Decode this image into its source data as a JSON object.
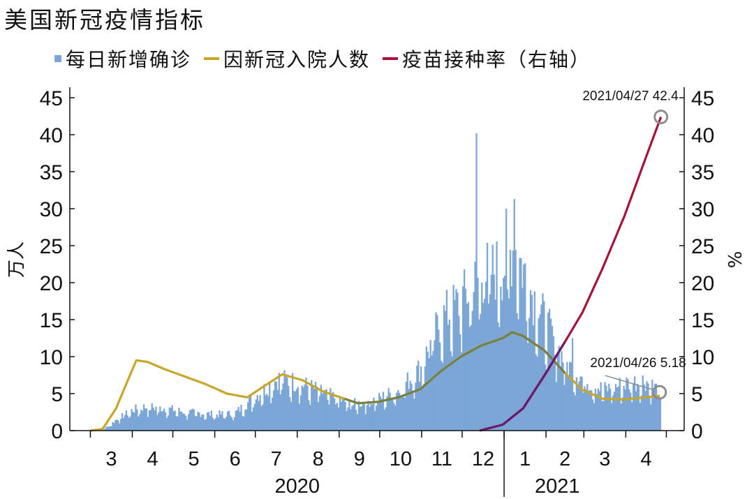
{
  "title": "美国新冠疫情指标",
  "legend": [
    {
      "label": "每日新增确诊",
      "type": "bar",
      "color": "#7ba6d6"
    },
    {
      "label": "因新冠入院人数",
      "type": "line",
      "color": "#c8a62a"
    },
    {
      "label": "疫苗接种率（右轴）",
      "type": "line",
      "color": "#a8123a"
    }
  ],
  "chart_data": {
    "type": "bar+line",
    "ylabel_left": "万人",
    "ylabel_right": "%",
    "ylim_left": [
      0,
      45
    ],
    "ylim_right": [
      0,
      45
    ],
    "yticks": [
      "0",
      "5",
      "10",
      "15",
      "20",
      "25",
      "30",
      "35",
      "40",
      "45"
    ],
    "months": [
      "3",
      "4",
      "5",
      "6",
      "7",
      "8",
      "9",
      "10",
      "11",
      "12",
      "1",
      "2",
      "3",
      "4"
    ],
    "years": [
      "2020",
      "2021"
    ],
    "colors": {
      "cases": "#7ba6d6",
      "hospital": "#c8a62a",
      "hospital_overlap": "#4e6a48",
      "vaccine": "#a8123a",
      "vaccine_overlap": "#6a1a6e",
      "marker": "#8c8c8c"
    },
    "series": [
      {
        "name": "每日新增确诊",
        "type": "bar",
        "key_points": [
          [
            "2020-03-01",
            0.0
          ],
          [
            "2020-03-10",
            0.1
          ],
          [
            "2020-03-20",
            1.5
          ],
          [
            "2020-04-01",
            2.8
          ],
          [
            "2020-04-10",
            3.2
          ],
          [
            "2020-04-25",
            3.0
          ],
          [
            "2020-05-10",
            2.5
          ],
          [
            "2020-05-31",
            2.2
          ],
          [
            "2020-06-15",
            2.3
          ],
          [
            "2020-06-30",
            4.5
          ],
          [
            "2020-07-17",
            7.0
          ],
          [
            "2020-07-31",
            6.5
          ],
          [
            "2020-08-15",
            5.5
          ],
          [
            "2020-08-31",
            4.2
          ],
          [
            "2020-09-10",
            3.5
          ],
          [
            "2020-09-30",
            4.3
          ],
          [
            "2020-10-15",
            5.5
          ],
          [
            "2020-10-31",
            8.5
          ],
          [
            "2020-11-15",
            15.0
          ],
          [
            "2020-11-30",
            17.5
          ],
          [
            "2020-12-15",
            21.0
          ],
          [
            "2020-12-31",
            22.0
          ],
          [
            "2021-01-08",
            25.0
          ],
          [
            "2021-01-20",
            19.0
          ],
          [
            "2021-01-31",
            14.5
          ],
          [
            "2021-02-15",
            9.0
          ],
          [
            "2021-02-28",
            7.0
          ],
          [
            "2021-03-15",
            5.5
          ],
          [
            "2021-03-31",
            6.3
          ],
          [
            "2021-04-15",
            6.8
          ],
          [
            "2021-04-26",
            5.2
          ]
        ],
        "peaks": [
          [
            "2020-12-11",
            40.2
          ],
          [
            "2021-01-08",
            31.3
          ],
          [
            "2021-01-02",
            30.0
          ],
          [
            "2021-02-20",
            12.5
          ]
        ]
      },
      {
        "name": "因新冠入院人数",
        "type": "line",
        "points": [
          [
            "2020-03-01",
            0.0
          ],
          [
            "2020-03-10",
            0.2
          ],
          [
            "2020-03-20",
            3.0
          ],
          [
            "2020-03-28",
            6.5
          ],
          [
            "2020-04-04",
            9.5
          ],
          [
            "2020-04-12",
            9.3
          ],
          [
            "2020-04-25",
            8.3
          ],
          [
            "2020-05-10",
            7.3
          ],
          [
            "2020-05-25",
            6.3
          ],
          [
            "2020-06-10",
            5.0
          ],
          [
            "2020-06-25",
            4.5
          ],
          [
            "2020-07-10",
            6.3
          ],
          [
            "2020-07-21",
            7.6
          ],
          [
            "2020-08-05",
            6.8
          ],
          [
            "2020-08-20",
            5.3
          ],
          [
            "2020-09-05",
            4.3
          ],
          [
            "2020-09-15",
            3.7
          ],
          [
            "2020-09-30",
            3.9
          ],
          [
            "2020-10-15",
            4.5
          ],
          [
            "2020-10-31",
            5.6
          ],
          [
            "2020-11-15",
            8.0
          ],
          [
            "2020-11-30",
            10.0
          ],
          [
            "2020-12-15",
            11.5
          ],
          [
            "2020-12-31",
            12.5
          ],
          [
            "2021-01-07",
            13.3
          ],
          [
            "2021-01-15",
            12.8
          ],
          [
            "2021-01-31",
            10.8
          ],
          [
            "2021-02-15",
            7.8
          ],
          [
            "2021-02-28",
            5.5
          ],
          [
            "2021-03-15",
            4.3
          ],
          [
            "2021-03-31",
            4.2
          ],
          [
            "2021-04-15",
            4.5
          ],
          [
            "2021-04-26",
            4.7
          ]
        ]
      },
      {
        "name": "疫苗接种率（右轴）",
        "type": "line",
        "points": [
          [
            "2020-12-14",
            0.0
          ],
          [
            "2020-12-31",
            0.8
          ],
          [
            "2021-01-15",
            3.0
          ],
          [
            "2021-01-31",
            7.5
          ],
          [
            "2021-02-15",
            12.0
          ],
          [
            "2021-02-28",
            16.0
          ],
          [
            "2021-03-15",
            22.0
          ],
          [
            "2021-03-31",
            29.0
          ],
          [
            "2021-04-15",
            36.5
          ],
          [
            "2021-04-27",
            42.4
          ]
        ]
      }
    ],
    "annotations": [
      {
        "text": "2021/04/27 42.4",
        "date": "2021-04-27",
        "value": 42.4,
        "axis": "right"
      },
      {
        "text": "2021/04/26 5.18",
        "date": "2021-04-26",
        "value": 5.18,
        "axis": "left"
      }
    ]
  }
}
